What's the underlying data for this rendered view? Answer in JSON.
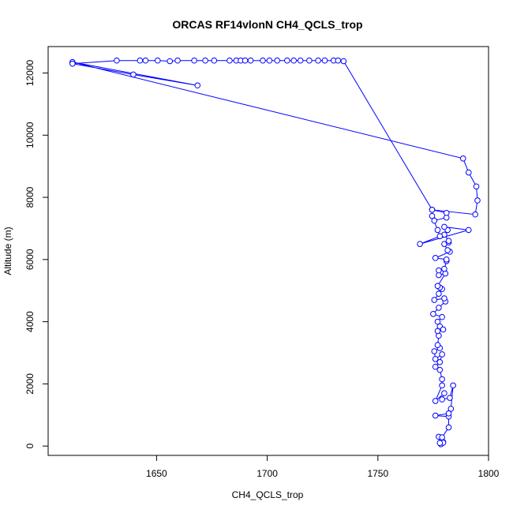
{
  "chart_data": {
    "type": "line",
    "title": "ORCAS RF14vlonN CH4_QCLS_trop",
    "xlabel": "CH4_QCLS_trop",
    "ylabel": "Altitude (m)",
    "xlim": [
      1601,
      1800
    ],
    "ylim": [
      -300,
      12850
    ],
    "xticks": [
      1650,
      1700,
      1750,
      1800
    ],
    "yticks": [
      0,
      2000,
      4000,
      6000,
      8000,
      10000,
      12000
    ],
    "grid": false,
    "legend": "none",
    "series_color": "#0000FF",
    "marker": "open-circle",
    "series": [
      {
        "points": [
          [
            1779,
            90
          ],
          [
            1779.5,
            130
          ],
          [
            1778.5,
            60
          ],
          [
            1779.5,
            110
          ],
          [
            1778,
            100
          ],
          [
            1777.5,
            300
          ],
          [
            1779,
            280
          ],
          [
            1782,
            600
          ],
          [
            1782,
            950
          ],
          [
            1776,
            980
          ],
          [
            1782,
            1050
          ],
          [
            1783,
            1200
          ],
          [
            1784,
            1950
          ],
          [
            1782.5,
            1550
          ],
          [
            1779,
            1500
          ],
          [
            1780,
            1700
          ],
          [
            1776,
            1450
          ],
          [
            1779,
            1950
          ],
          [
            1779,
            2150
          ],
          [
            1778,
            2450
          ],
          [
            1776,
            2550
          ],
          [
            1778,
            2700
          ],
          [
            1779,
            2950
          ],
          [
            1776,
            2800
          ],
          [
            1775.5,
            3050
          ],
          [
            1778,
            3150
          ],
          [
            1777,
            3250
          ],
          [
            1777.5,
            3550
          ],
          [
            1777,
            3700
          ],
          [
            1778,
            3850
          ],
          [
            1779.5,
            3750
          ],
          [
            1777,
            4000
          ],
          [
            1779,
            4150
          ],
          [
            1775,
            4250
          ],
          [
            1777.5,
            4450
          ],
          [
            1780.5,
            4650
          ],
          [
            1780,
            4750
          ],
          [
            1775.5,
            4700
          ],
          [
            1777.5,
            4900
          ],
          [
            1779,
            5050
          ],
          [
            1778,
            5100
          ],
          [
            1777,
            5150
          ],
          [
            1780.5,
            5550
          ],
          [
            1777.5,
            5500
          ],
          [
            1777.5,
            5650
          ],
          [
            1780,
            5700
          ],
          [
            1781,
            5950
          ],
          [
            1781,
            6000
          ],
          [
            1776,
            6050
          ],
          [
            1782.5,
            6250
          ],
          [
            1781.5,
            6300
          ],
          [
            1780,
            6500
          ],
          [
            1782,
            6550
          ],
          [
            1782,
            6600
          ],
          [
            1780,
            6800
          ],
          [
            1781.5,
            6950
          ],
          [
            1780,
            7050
          ],
          [
            1791,
            6950
          ],
          [
            1769,
            6500
          ],
          [
            1778,
            6750
          ],
          [
            1777,
            6950
          ],
          [
            1774.5,
            7400
          ],
          [
            1775.5,
            7250
          ],
          [
            1781,
            7350
          ],
          [
            1781,
            7500
          ],
          [
            1774.5,
            7600
          ],
          [
            1794,
            7450
          ],
          [
            1795,
            7900
          ],
          [
            1794.5,
            8350
          ],
          [
            1791,
            8800
          ],
          [
            1788.5,
            9250
          ],
          [
            1612,
            12350
          ],
          [
            1668.5,
            11600
          ],
          [
            1639.5,
            11950
          ],
          [
            1612,
            12300
          ],
          [
            1632,
            12400
          ],
          [
            1642.5,
            12400
          ],
          [
            1645,
            12400
          ],
          [
            1650.5,
            12400
          ],
          [
            1656,
            12380
          ],
          [
            1659.5,
            12400
          ],
          [
            1667,
            12400
          ],
          [
            1672,
            12400
          ],
          [
            1676,
            12400
          ],
          [
            1683,
            12400
          ],
          [
            1686,
            12400
          ],
          [
            1688,
            12400
          ],
          [
            1690,
            12400
          ],
          [
            1692.5,
            12400
          ],
          [
            1698,
            12400
          ],
          [
            1701,
            12400
          ],
          [
            1704.5,
            12400
          ],
          [
            1709,
            12400
          ],
          [
            1712,
            12400
          ],
          [
            1715,
            12400
          ],
          [
            1719,
            12400
          ],
          [
            1723,
            12400
          ],
          [
            1726,
            12400
          ],
          [
            1730,
            12400
          ],
          [
            1732,
            12400
          ],
          [
            1734.5,
            12380
          ],
          [
            1774.5,
            7600
          ]
        ]
      }
    ]
  }
}
